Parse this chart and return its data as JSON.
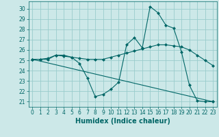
{
  "xlabel": "Humidex (Indice chaleur)",
  "bg_color": "#cce8e8",
  "grid_color": "#99cccc",
  "line_color": "#006666",
  "xlim": [
    -0.5,
    23.5
  ],
  "ylim": [
    20.5,
    30.7
  ],
  "yticks": [
    21,
    22,
    23,
    24,
    25,
    26,
    27,
    28,
    29,
    30
  ],
  "xticks": [
    0,
    1,
    2,
    3,
    4,
    5,
    6,
    7,
    8,
    9,
    10,
    11,
    12,
    13,
    14,
    15,
    16,
    17,
    18,
    19,
    20,
    21,
    22,
    23
  ],
  "line1_x": [
    0,
    1,
    2,
    3,
    4,
    5,
    6,
    7,
    8,
    9,
    10,
    11,
    12,
    13,
    14,
    15,
    16,
    17,
    18,
    19,
    20,
    21,
    22,
    23
  ],
  "line1_y": [
    25.1,
    25.1,
    25.1,
    25.5,
    25.5,
    25.3,
    24.7,
    23.3,
    21.5,
    21.7,
    22.2,
    22.9,
    26.5,
    27.2,
    26.2,
    30.2,
    29.6,
    28.4,
    28.1,
    25.8,
    22.6,
    21.1,
    21.0,
    21.0
  ],
  "line2_x": [
    0,
    1,
    2,
    3,
    4,
    5,
    6,
    7,
    8,
    9,
    10,
    11,
    12,
    13,
    14,
    15,
    16,
    17,
    18,
    19,
    20,
    21,
    22,
    23
  ],
  "line2_y": [
    25.1,
    25.1,
    25.2,
    25.5,
    25.4,
    25.3,
    25.2,
    25.1,
    25.1,
    25.1,
    25.3,
    25.5,
    25.7,
    25.9,
    26.1,
    26.3,
    26.5,
    26.5,
    26.4,
    26.3,
    26.0,
    25.5,
    25.0,
    24.5
  ],
  "line3_x": [
    0,
    23
  ],
  "line3_y": [
    25.1,
    21.0
  ],
  "tick_fontsize": 5.5,
  "xlabel_fontsize": 7,
  "marker_size": 2.5,
  "line_width": 0.8
}
